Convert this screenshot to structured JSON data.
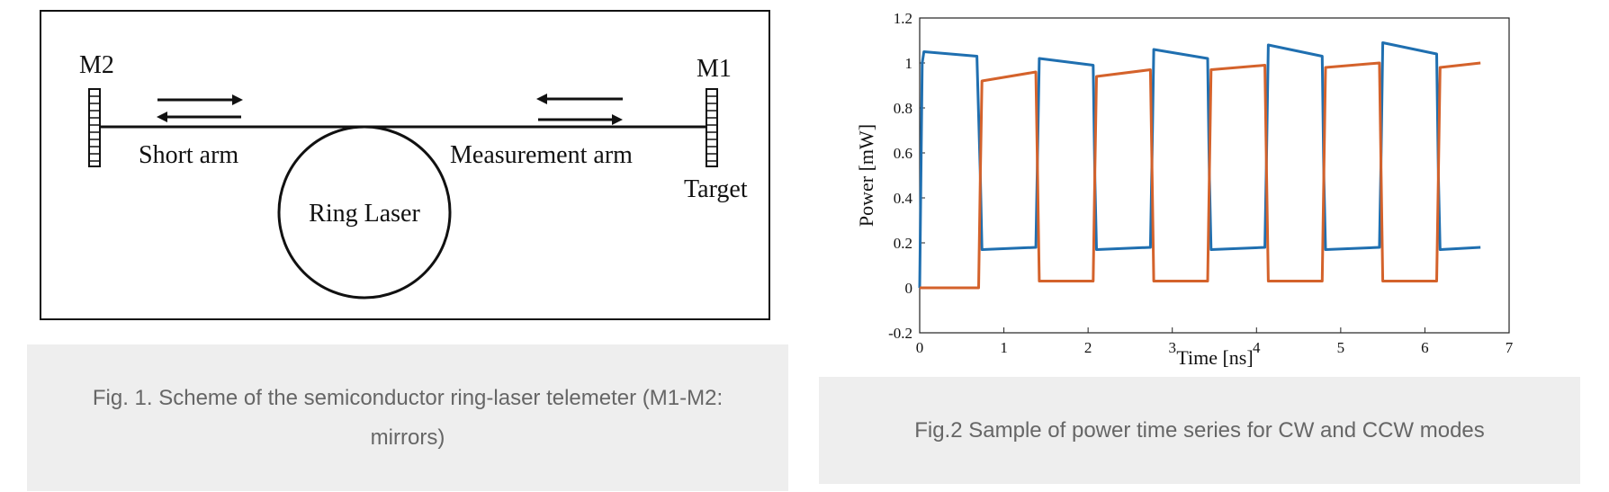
{
  "figure1": {
    "labels": {
      "m2": "M2",
      "m1": "M1",
      "short_arm": "Short arm",
      "measurement_arm": "Measurement arm",
      "target": "Target",
      "ring_laser": "Ring Laser"
    },
    "caption": "Fig. 1. Scheme of the semiconductor ring-laser telemeter (M1-M2: mirrors)"
  },
  "figure2": {
    "caption": "Fig.2 Sample of power time series for CW and CCW modes",
    "chart_data": {
      "type": "line",
      "title": "",
      "xlabel": "Time [ns]",
      "ylabel": "Power [mW]",
      "xlim": [
        0,
        7
      ],
      "ylim": [
        -0.2,
        1.2
      ],
      "xticks": [
        "0",
        "1",
        "2",
        "3",
        "4",
        "5",
        "6",
        "7"
      ],
      "yticks": [
        "-0.2",
        "0",
        "0.2",
        "0.4",
        "0.6",
        "0.8",
        "1",
        "1.2"
      ],
      "grid": false,
      "series": [
        {
          "color": "#1f6fb0",
          "x": [
            0.0,
            0.03,
            0.05,
            0.68,
            0.72,
            0.74,
            1.38,
            1.4,
            1.42,
            2.06,
            2.08,
            2.1,
            2.74,
            2.76,
            2.78,
            3.42,
            3.44,
            3.46,
            4.1,
            4.12,
            4.14,
            4.78,
            4.8,
            4.82,
            5.46,
            5.48,
            5.5,
            6.14,
            6.16,
            6.18,
            6.66
          ],
          "values": [
            0.0,
            1.0,
            1.05,
            1.03,
            0.5,
            0.17,
            0.18,
            0.6,
            1.02,
            0.99,
            0.5,
            0.17,
            0.18,
            0.6,
            1.06,
            1.02,
            0.5,
            0.17,
            0.18,
            0.6,
            1.08,
            1.03,
            0.5,
            0.17,
            0.18,
            0.6,
            1.09,
            1.04,
            0.5,
            0.17,
            0.18
          ]
        },
        {
          "color": "#d4622b",
          "x": [
            0.0,
            0.7,
            0.72,
            0.74,
            1.38,
            1.4,
            1.42,
            2.06,
            2.08,
            2.1,
            2.74,
            2.76,
            2.78,
            3.42,
            3.44,
            3.46,
            4.1,
            4.12,
            4.14,
            4.78,
            4.8,
            4.82,
            5.46,
            5.48,
            5.5,
            6.14,
            6.16,
            6.18,
            6.66
          ],
          "values": [
            0.0,
            0.0,
            0.5,
            0.92,
            0.96,
            0.5,
            0.03,
            0.03,
            0.5,
            0.94,
            0.97,
            0.5,
            0.03,
            0.03,
            0.5,
            0.97,
            0.99,
            0.5,
            0.03,
            0.03,
            0.5,
            0.98,
            1.0,
            0.5,
            0.03,
            0.03,
            0.5,
            0.98,
            1.0
          ]
        }
      ]
    }
  }
}
